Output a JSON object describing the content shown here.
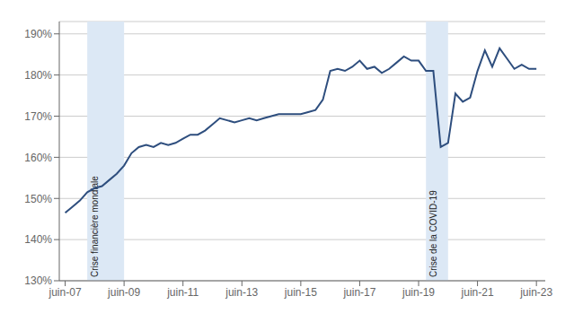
{
  "chart_data": {
    "type": "line",
    "color": "#2e4e7e",
    "grid": true,
    "xlim": [
      2007.3,
      2023.8
    ],
    "xticks": [
      {
        "value": 2007.5,
        "label": "juin-07"
      },
      {
        "value": 2009.5,
        "label": "juin-09"
      },
      {
        "value": 2011.5,
        "label": "juin-11"
      },
      {
        "value": 2013.5,
        "label": "juin-13"
      },
      {
        "value": 2015.5,
        "label": "juin-15"
      },
      {
        "value": 2017.5,
        "label": "juin-17"
      },
      {
        "value": 2019.5,
        "label": "juin-19"
      },
      {
        "value": 2021.5,
        "label": "juin-21"
      },
      {
        "value": 2023.5,
        "label": "juin-23"
      }
    ],
    "ylim": [
      130,
      193
    ],
    "yticks": [
      {
        "value": 130,
        "label": "130%"
      },
      {
        "value": 140,
        "label": "140%"
      },
      {
        "value": 150,
        "label": "150%"
      },
      {
        "value": 160,
        "label": "160%"
      },
      {
        "value": 170,
        "label": "170%"
      },
      {
        "value": 180,
        "label": "180%"
      },
      {
        "value": 190,
        "label": "190%"
      }
    ],
    "annotations": [
      {
        "text": "Crise financière mondiale",
        "x_start": 2008.25,
        "x_end": 2009.5,
        "color": "#dce8f5"
      },
      {
        "text": "Crise de la COVID-19",
        "x_start": 2019.75,
        "x_end": 2020.5,
        "color": "#dce8f5"
      }
    ],
    "x": [
      2007.5,
      2007.75,
      2008.0,
      2008.25,
      2008.5,
      2008.75,
      2009.0,
      2009.25,
      2009.5,
      2009.75,
      2010.0,
      2010.25,
      2010.5,
      2010.75,
      2011.0,
      2011.25,
      2011.5,
      2011.75,
      2012.0,
      2012.25,
      2012.5,
      2012.75,
      2013.0,
      2013.25,
      2013.5,
      2013.75,
      2014.0,
      2014.25,
      2014.5,
      2014.75,
      2015.0,
      2015.25,
      2015.5,
      2015.75,
      2016.0,
      2016.25,
      2016.5,
      2016.75,
      2017.0,
      2017.25,
      2017.5,
      2017.75,
      2018.0,
      2018.25,
      2018.5,
      2018.75,
      2019.0,
      2019.25,
      2019.5,
      2019.75,
      2020.0,
      2020.25,
      2020.5,
      2020.75,
      2021.0,
      2021.25,
      2021.5,
      2021.75,
      2022.0,
      2022.25,
      2022.5,
      2022.75,
      2023.0,
      2023.25,
      2023.5
    ],
    "values": [
      146.5,
      148.0,
      149.5,
      151.5,
      152.5,
      153.0,
      154.5,
      156.0,
      158.0,
      161.0,
      162.5,
      163.0,
      162.5,
      163.5,
      163.0,
      163.5,
      164.5,
      165.5,
      165.5,
      166.5,
      168.0,
      169.5,
      169.0,
      168.5,
      169.0,
      169.5,
      169.0,
      169.5,
      170.0,
      170.5,
      170.5,
      170.5,
      170.5,
      171.0,
      171.5,
      174.0,
      181.0,
      181.5,
      181.0,
      182.0,
      183.5,
      181.5,
      182.0,
      180.5,
      181.5,
      183.0,
      184.5,
      183.5,
      183.5,
      181.0,
      181.0,
      162.5,
      163.5,
      175.5,
      173.5,
      174.5,
      181.0,
      186.0,
      182.0,
      186.5,
      184.0,
      181.5,
      182.5,
      181.5,
      181.5
    ]
  }
}
